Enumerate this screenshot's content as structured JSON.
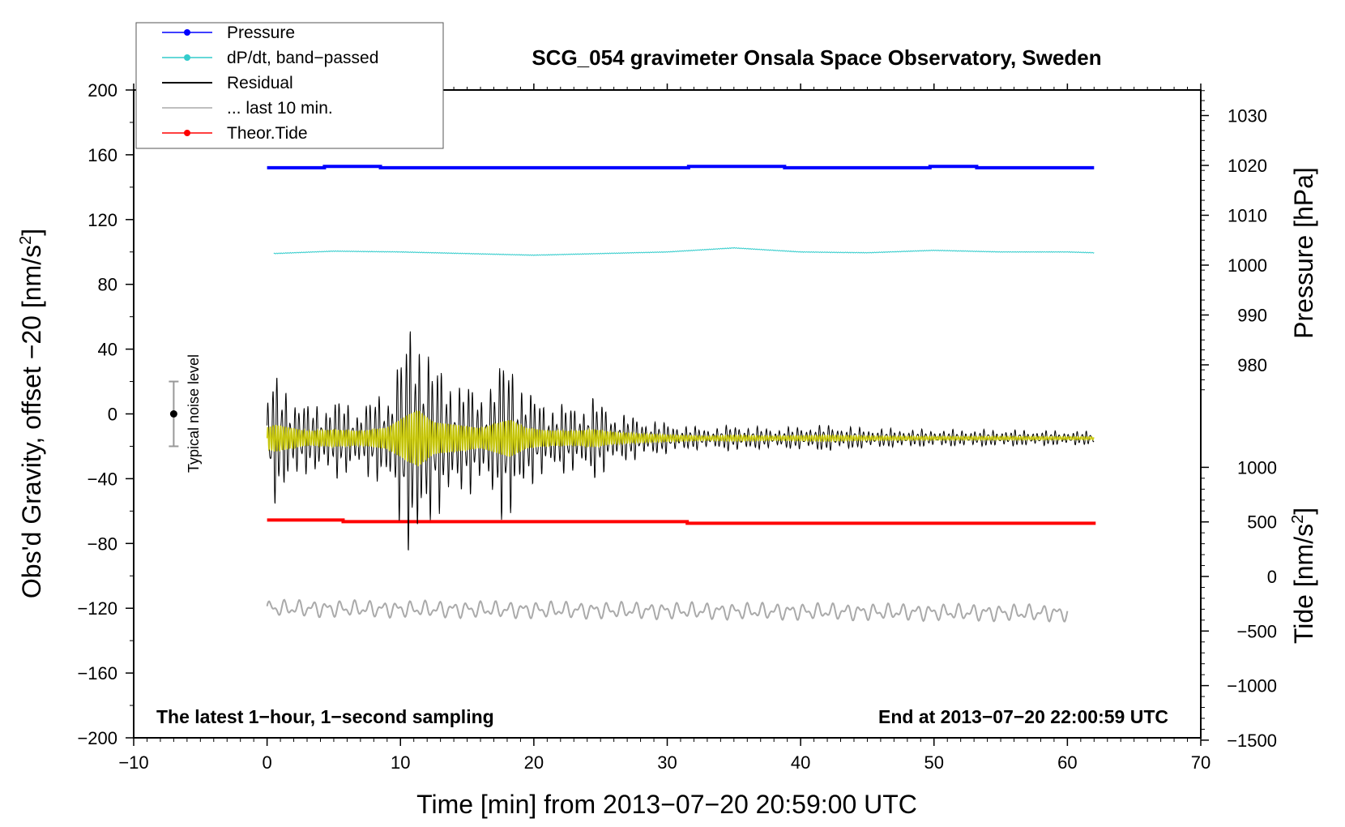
{
  "chart_data": {
    "type": "line",
    "title": "SCG_054 gravimeter Onsala Space Observatory, Sweden",
    "xlabel": "Time [min] from 2013−07−20 20:59:00 UTC",
    "ylabel_main": "Obs'd Gravity, offset −20 [nm/s",
    "ylabel_main_sup": "2",
    "ylabel_main_end": "]",
    "ylabel_pressure": "Pressure [hPa]",
    "ylabel_tide": "Tide [nm/s",
    "ylabel_tide_sup": "2",
    "ylabel_tide_end": "]",
    "xlim": [
      -10,
      70
    ],
    "ylim": [
      -200,
      200
    ],
    "x_ticks": [
      -10,
      0,
      10,
      20,
      30,
      40,
      50,
      60,
      70
    ],
    "x_tick_labels": [
      "−10",
      "0",
      "10",
      "20",
      "30",
      "40",
      "50",
      "60",
      "70"
    ],
    "y_ticks": [
      -200,
      -160,
      -120,
      -80,
      -40,
      0,
      40,
      80,
      120,
      160,
      200
    ],
    "y_tick_labels": [
      "−200",
      "−160",
      "−120",
      "−80",
      "−40",
      "0",
      "40",
      "80",
      "120",
      "160",
      "200"
    ],
    "pressure_ticks": [
      980,
      990,
      1000,
      1010,
      1020,
      1030
    ],
    "pressure_tick_labels": [
      "980",
      "990",
      "1000",
      "1010",
      "1020",
      "1030"
    ],
    "tide_ticks": [
      -1500,
      -1000,
      -500,
      0,
      500,
      1000
    ],
    "tide_tick_labels": [
      "−1500",
      "−1000",
      "−500",
      "0",
      "500",
      "1000"
    ],
    "legend": [
      {
        "label": "Pressure",
        "color": "#0000ff",
        "marker": true
      },
      {
        "label": "dP/dt, band−passed",
        "color": "#33cccc",
        "marker": true
      },
      {
        "label": "Residual",
        "color": "#000000",
        "marker": false
      },
      {
        "label": "... last 10 min.",
        "color": "#aaaaaa",
        "marker": false
      },
      {
        "label": "Theor.Tide",
        "color": "#ff0000",
        "marker": true
      }
    ],
    "annotations": {
      "left": "The latest 1−hour, 1−second sampling",
      "right": "End at 2013−07−20 22:00:59 UTC",
      "noise": "Typical noise level"
    },
    "noise_bar": {
      "x": -7,
      "y_low": -20,
      "y_high": 20,
      "y_center": 0
    },
    "series": [
      {
        "name": "Pressure",
        "color": "#0000ff",
        "x": [
          0,
          4.3,
          8.5,
          31.6,
          38.8,
          49.7,
          53.2,
          62
        ],
        "y": [
          152,
          152.8,
          152,
          152.8,
          152,
          152.8,
          152,
          152
        ]
      },
      {
        "name": "dP/dt, band−passed",
        "color": "#33cccc",
        "x": [
          0.5,
          5,
          10,
          15,
          20,
          25,
          30,
          35,
          40,
          45,
          50,
          55,
          60,
          62
        ],
        "y": [
          99,
          100.5,
          100,
          99,
          98,
          99,
          100,
          102.5,
          100,
          99.5,
          101,
          100,
          100,
          99.5
        ]
      },
      {
        "name": "Theor.Tide",
        "color": "#ff0000",
        "x": [
          0,
          5.7,
          31.5,
          61.3,
          62
        ],
        "y": [
          -65.5,
          -66.5,
          -67.5,
          -67.5,
          -66.5
        ]
      },
      {
        "name": "Residual envelope",
        "color": "#000000",
        "x": [
          0,
          0.6,
          3,
          5,
          7,
          9,
          10.5,
          11.3,
          12.5,
          14.3,
          16,
          18.2,
          19.5,
          21,
          23,
          24.5,
          26,
          28,
          30,
          33,
          35,
          38,
          42,
          45,
          50,
          55,
          62
        ],
        "y": [
          30,
          38,
          20,
          24,
          20,
          30,
          65,
          80,
          45,
          37,
          28,
          53,
          28,
          22,
          20,
          25,
          16,
          12,
          9,
          6,
          8,
          6,
          8,
          6,
          5,
          5,
          4
        ]
      },
      {
        "name": "... last 10 min.",
        "color": "#aaaaaa",
        "x": [
          0,
          60
        ],
        "y": [
          -120,
          -123
        ]
      }
    ]
  }
}
